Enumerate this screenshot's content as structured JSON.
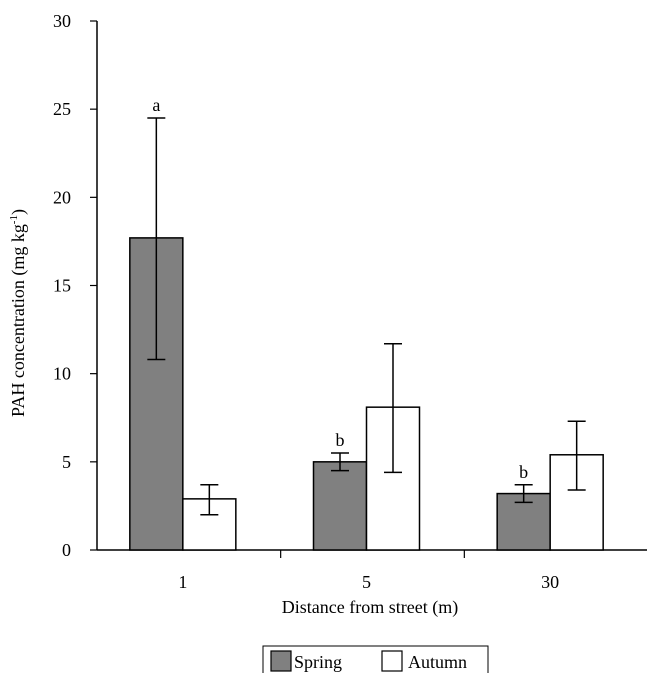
{
  "chart_data": {
    "type": "bar",
    "title": "",
    "xlabel": "Distance from street (m)",
    "ylabel": {
      "main": "PAH concentration (mg kg",
      "superscript": "-1",
      "close": ")"
    },
    "categories": [
      "1",
      "5",
      "30"
    ],
    "ylim": [
      0,
      30
    ],
    "yticks": [
      "0",
      "5",
      "10",
      "15",
      "20",
      "25",
      "30"
    ],
    "series": [
      {
        "name": "Spring",
        "color": "#808080",
        "values": [
          17.7,
          5.0,
          3.2
        ],
        "error_low": [
          10.8,
          4.5,
          2.7
        ],
        "error_high": [
          24.5,
          5.5,
          3.7
        ],
        "significance": [
          "a",
          "b",
          "b"
        ]
      },
      {
        "name": "Autumn",
        "color": "#ffffff",
        "values": [
          2.9,
          8.1,
          5.4
        ],
        "error_low": [
          2.0,
          4.4,
          3.4
        ],
        "error_high": [
          3.7,
          11.7,
          7.3
        ],
        "significance": [
          "",
          "",
          ""
        ]
      }
    ],
    "legend_position": "bottom-center",
    "grid": false
  }
}
